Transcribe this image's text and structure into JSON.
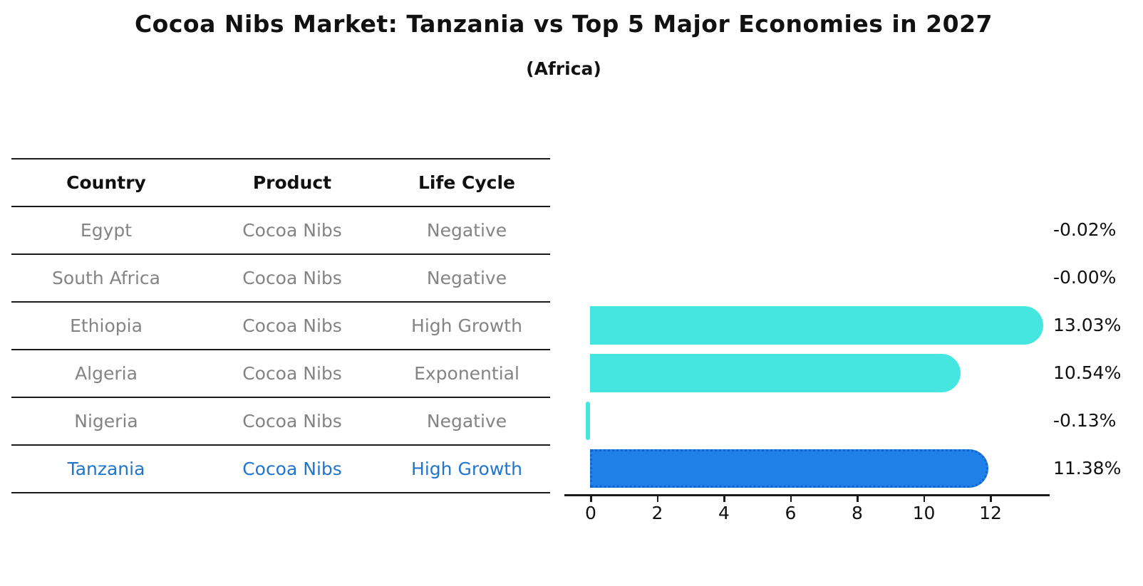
{
  "title": "Cocoa Nibs Market: Tanzania vs Top 5 Major Economies in 2027",
  "subtitle": "(Africa)",
  "table": {
    "headers": [
      "Country",
      "Product",
      "Life Cycle"
    ],
    "rows": [
      {
        "country": "Egypt",
        "product": "Cocoa Nibs",
        "life_cycle": "Negative",
        "highlight": false
      },
      {
        "country": "South Africa",
        "product": "Cocoa Nibs",
        "life_cycle": "Negative",
        "highlight": false
      },
      {
        "country": "Ethiopia",
        "product": "Cocoa Nibs",
        "life_cycle": "High Growth",
        "highlight": false
      },
      {
        "country": "Algeria",
        "product": "Cocoa Nibs",
        "life_cycle": "Exponential",
        "highlight": false
      },
      {
        "country": "Nigeria",
        "product": "Cocoa Nibs",
        "life_cycle": "Negative",
        "highlight": false
      },
      {
        "country": "Tanzania",
        "product": "Cocoa Nibs",
        "life_cycle": "High Growth",
        "highlight": true
      }
    ]
  },
  "chart_data": {
    "type": "bar",
    "orientation": "horizontal",
    "title": "Cocoa Nibs Market: Tanzania vs Top 5 Major Economies in 2027",
    "subtitle": "(Africa)",
    "categories": [
      "Egypt",
      "South Africa",
      "Ethiopia",
      "Algeria",
      "Nigeria",
      "Tanzania"
    ],
    "values": [
      -0.02,
      -0.0,
      13.03,
      10.54,
      -0.13,
      11.38
    ],
    "labels": [
      "-0.02%",
      "-0.00%",
      "13.03%",
      "10.54%",
      "-0.13%",
      "11.38%"
    ],
    "xticks": [
      0,
      2,
      4,
      6,
      8,
      10,
      12
    ],
    "xlim": [
      -0.8,
      14.0
    ],
    "grid": false,
    "legend": "none",
    "highlight_index": 5,
    "colors": {
      "bar_default": "#45E6DF",
      "bar_highlight": "#1E80E8",
      "bar_highlight_border": "#1563CF",
      "highlight_text": "#2176CB",
      "muted_text": "#848484",
      "axis": "#1a1a1a"
    }
  }
}
